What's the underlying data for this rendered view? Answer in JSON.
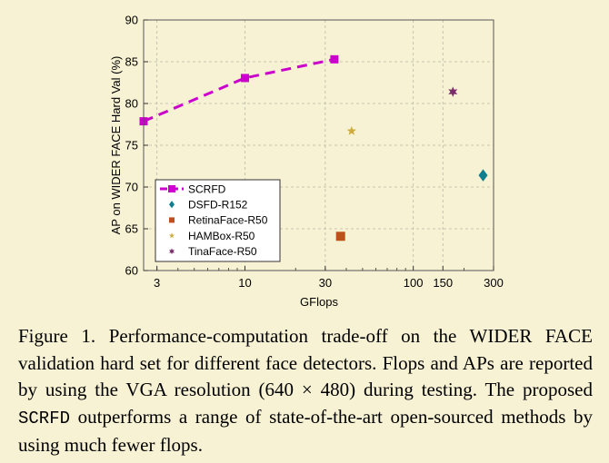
{
  "chart_data": {
    "type": "scatter",
    "xscale": "log",
    "xlabel": "GFlops",
    "ylabel": "AP on WIDER FACE Hard Val (%)",
    "xlim": [
      2.5,
      300
    ],
    "ylim": [
      60,
      90
    ],
    "xticks": [
      {
        "value": 3,
        "label": "3"
      },
      {
        "value": 10,
        "label": "10"
      },
      {
        "value": 30,
        "label": "30"
      },
      {
        "value": 100,
        "label": "100"
      },
      {
        "value": 150,
        "label": "150"
      },
      {
        "value": 300,
        "label": "300"
      }
    ],
    "yticks": [
      {
        "value": 60,
        "label": "60"
      },
      {
        "value": 65,
        "label": "65"
      },
      {
        "value": 70,
        "label": "70"
      },
      {
        "value": 75,
        "label": "75"
      },
      {
        "value": 80,
        "label": "80"
      },
      {
        "value": 85,
        "label": "85"
      },
      {
        "value": 90,
        "label": "90"
      }
    ],
    "grid": true,
    "legend_position": "lower-left",
    "series": [
      {
        "name": "SCRFD",
        "marker": "square",
        "line": "dashed",
        "color": "#cc00cc",
        "points": [
          {
            "x": 2.5,
            "y": 77.87
          },
          {
            "x": 10,
            "y": 83.05
          },
          {
            "x": 34,
            "y": 85.29
          }
        ]
      },
      {
        "name": "DSFD-R152",
        "marker": "diamond",
        "color": "#0f7f8f",
        "points": [
          {
            "x": 260,
            "y": 71.4
          }
        ]
      },
      {
        "name": "RetinaFace-R50",
        "marker": "square",
        "color": "#c0501a",
        "points": [
          {
            "x": 37,
            "y": 64.1
          }
        ]
      },
      {
        "name": "HAMBox-R50",
        "marker": "star",
        "color": "#cdab3c",
        "points": [
          {
            "x": 43,
            "y": 76.7
          }
        ]
      },
      {
        "name": "TinaFace-R50",
        "marker": "star6",
        "color": "#7a2d6a",
        "points": [
          {
            "x": 172,
            "y": 81.4
          }
        ]
      }
    ]
  },
  "caption": {
    "part1": "Figure 1. Performance-computation trade-off on the WIDER FACE validation hard set for different face detectors. Flops and APs are reported by using the VGA resolution (640 × 480) during testing. The proposed ",
    "method": "SCRFD",
    "part2": " outperforms a range of state-of-the-art open-sourced methods by using much fewer flops."
  }
}
